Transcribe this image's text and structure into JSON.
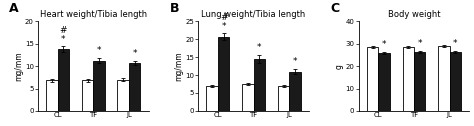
{
  "chart_data": [
    {
      "type": "bar",
      "label": "A",
      "title": "Heart weight/Tibia length",
      "ylabel": "mg/mm",
      "categories": [
        "CL",
        "TF",
        "JL"
      ],
      "ylim": [
        0,
        20
      ],
      "yticks": [
        0,
        5,
        10,
        15,
        20
      ],
      "series": [
        {
          "color": "#ffffff",
          "values": [
            6.8,
            6.8,
            7.0
          ],
          "errors": [
            0.3,
            0.3,
            0.3
          ]
        },
        {
          "color": "#1a1a1a",
          "values": [
            13.8,
            11.2,
            10.7
          ],
          "errors": [
            0.6,
            0.6,
            0.5
          ],
          "annotations": [
            [
              "#",
              "*"
            ],
            [
              "*"
            ],
            [
              "*"
            ]
          ]
        }
      ]
    },
    {
      "type": "bar",
      "label": "B",
      "title": "Lung weight/Tibia length",
      "ylabel": "mg/mm",
      "categories": [
        "CL",
        "TF",
        "JL"
      ],
      "ylim": [
        0,
        25
      ],
      "yticks": [
        0,
        5,
        10,
        15,
        20,
        25
      ],
      "series": [
        {
          "color": "#ffffff",
          "values": [
            7.0,
            7.5,
            7.0
          ],
          "errors": [
            0.3,
            0.3,
            0.3
          ]
        },
        {
          "color": "#1a1a1a",
          "values": [
            20.7,
            14.5,
            11.0
          ],
          "errors": [
            1.0,
            1.2,
            0.8
          ],
          "annotations": [
            [
              "#",
              "*"
            ],
            [
              "*"
            ],
            [
              "*"
            ]
          ]
        }
      ]
    },
    {
      "type": "bar",
      "label": "C",
      "title": "Body weight",
      "ylabel": "g",
      "categories": [
        "CL",
        "TF",
        "JL"
      ],
      "ylim": [
        0,
        40
      ],
      "yticks": [
        0,
        10,
        20,
        30,
        40
      ],
      "series": [
        {
          "color": "#ffffff",
          "values": [
            28.5,
            28.5,
            29.0
          ],
          "errors": [
            0.5,
            0.5,
            0.5
          ]
        },
        {
          "color": "#1a1a1a",
          "values": [
            25.8,
            26.3,
            26.3
          ],
          "errors": [
            0.5,
            0.5,
            0.5
          ],
          "annotations": [
            [
              "*"
            ],
            [
              "*"
            ],
            [
              "*"
            ]
          ]
        }
      ]
    }
  ]
}
